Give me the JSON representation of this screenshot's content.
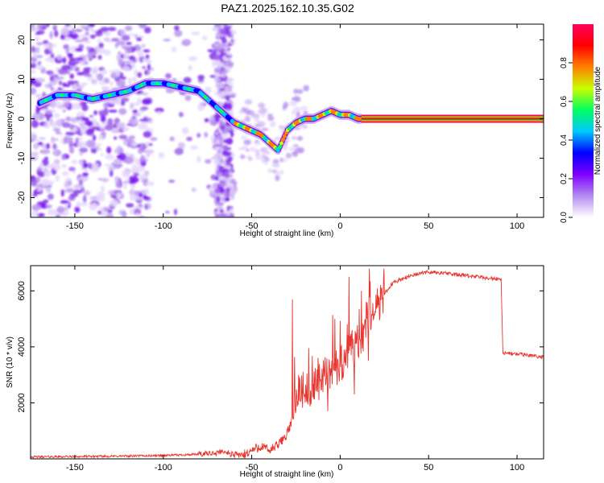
{
  "title": "PAZ1.2025.162.10.35.G02",
  "chart_data": [
    {
      "type": "heatmap",
      "xlabel": "Height of straight line (km)",
      "ylabel": "Frequency (Hz)",
      "xlim": [
        -175,
        115
      ],
      "ylim": [
        -25,
        24
      ],
      "xticks": [
        -150,
        -100,
        -50,
        0,
        50,
        100
      ],
      "yticks": [
        20,
        10,
        0,
        -10,
        -20
      ],
      "colorbar": {
        "label": "Normalized spectral amplitude",
        "range": [
          0,
          1
        ],
        "ticks": [
          0.0,
          0.2,
          0.4,
          0.6,
          0.8
        ],
        "colors": [
          "#ffffff",
          "#b48cf0",
          "#7f00ff",
          "#0000ff",
          "#00c8ff",
          "#00ff60",
          "#c8ff00",
          "#ff8000",
          "#ff0000",
          "#ff0060"
        ]
      },
      "ridge": {
        "x": [
          -170,
          -160,
          -150,
          -140,
          -130,
          -120,
          -110,
          -100,
          -90,
          -80,
          -75,
          -70,
          -65,
          -60,
          -55,
          -50,
          -45,
          -40,
          -35,
          -30,
          -25,
          -20,
          -15,
          -10,
          -5,
          0,
          5,
          10,
          115
        ],
        "y": [
          4,
          6,
          6,
          5,
          6,
          7,
          9,
          9,
          8,
          7,
          5,
          3,
          1,
          -1,
          -2,
          -3,
          -4,
          -6,
          -8,
          -3,
          -1,
          0,
          0,
          1,
          2,
          1,
          1,
          0,
          0
        ]
      },
      "noise_region_x": [
        -175,
        -60
      ]
    },
    {
      "type": "line",
      "xlabel": "Height of straight line (km)",
      "ylabel": "SNR (10 * v/v)",
      "xlim": [
        -175,
        115
      ],
      "ylim": [
        0,
        6900
      ],
      "xticks": [
        -150,
        -100,
        -50,
        0,
        50,
        100
      ],
      "yticks": [
        2000,
        4000,
        6000
      ],
      "color": "#e8352e",
      "envelope": {
        "x": [
          -175,
          -150,
          -120,
          -100,
          -80,
          -70,
          -65,
          -60,
          -55,
          -50,
          -45,
          -40,
          -35,
          -30,
          -27,
          -25,
          -20,
          -15,
          -10,
          -5,
          0,
          5,
          10,
          15,
          20,
          25,
          30,
          40,
          50,
          60,
          70,
          80,
          90,
          91,
          92,
          93,
          100,
          110,
          115
        ],
        "y": [
          70,
          80,
          100,
          120,
          160,
          220,
          260,
          150,
          120,
          300,
          450,
          300,
          500,
          900,
          1400,
          2400,
          2500,
          2700,
          2900,
          3200,
          3400,
          3800,
          4100,
          4800,
          5400,
          5900,
          6300,
          6550,
          6680,
          6620,
          6550,
          6480,
          6420,
          6400,
          3800,
          3780,
          3740,
          3680,
          3620
        ]
      },
      "spikes": [
        {
          "x": -27,
          "y": 5700
        },
        {
          "x": -20,
          "y": 2300
        },
        {
          "x": -12,
          "y": 2100
        },
        {
          "x": -7,
          "y": 1700
        },
        {
          "x": -3,
          "y": 5000
        },
        {
          "x": 5,
          "y": 6500
        },
        {
          "x": 8,
          "y": 2300
        },
        {
          "x": 12,
          "y": 6000
        },
        {
          "x": 16,
          "y": 3500
        }
      ]
    }
  ]
}
